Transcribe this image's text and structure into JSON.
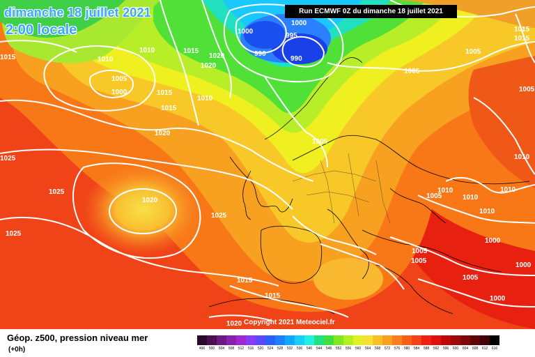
{
  "header": {
    "date_line": "dimanche 18 juillet 2021",
    "time_line": "2:00 locale",
    "run_info": "Run ECMWF 0Z du dimanche 18 juillet 2021"
  },
  "copyright": "Copyright 2021 Meteociel.fr",
  "footer": {
    "title": "Géop. z500, pression niveau mer",
    "subtitle": "(+0h)"
  },
  "legend": {
    "ticks": [
      "496",
      "500",
      "504",
      "508",
      "512",
      "516",
      "520",
      "524",
      "528",
      "532",
      "536",
      "540",
      "544",
      "548",
      "552",
      "556",
      "560",
      "564",
      "568",
      "572",
      "576",
      "580",
      "584",
      "588",
      "592",
      "596",
      "600",
      "604",
      "608",
      "612",
      "616"
    ],
    "colors": [
      "#2a0a2a",
      "#4a1050",
      "#6a1a80",
      "#8a20b0",
      "#a028d0",
      "#8a3aff",
      "#5a4aff",
      "#2a60ff",
      "#1a80ff",
      "#10a8ff",
      "#18d0ff",
      "#20f0e0",
      "#20e080",
      "#40e040",
      "#80e820",
      "#b0f020",
      "#e0f020",
      "#f8e030",
      "#f8c020",
      "#f8a020",
      "#f88020",
      "#f86018",
      "#f84018",
      "#f02010",
      "#e01010",
      "#c00808",
      "#a00808",
      "#800808",
      "#600408",
      "#400408",
      "#000000"
    ]
  },
  "isobar_labels": [
    {
      "text": "1000"
    },
    {
      "text": "990"
    },
    {
      "text": "995"
    },
    {
      "text": "990"
    },
    {
      "text": "1000"
    },
    {
      "text": "1005"
    },
    {
      "text": "1010"
    },
    {
      "text": "1010"
    },
    {
      "text": "1015"
    },
    {
      "text": "1020"
    },
    {
      "text": "1020"
    },
    {
      "text": "1005"
    },
    {
      "text": "1000"
    },
    {
      "text": "1015"
    },
    {
      "text": "1015"
    },
    {
      "text": "1010"
    },
    {
      "text": "1015"
    },
    {
      "text": "1020"
    },
    {
      "text": "1025"
    },
    {
      "text": "1025"
    },
    {
      "text": "1020"
    },
    {
      "text": "1025"
    },
    {
      "text": "1025"
    },
    {
      "text": "1005"
    },
    {
      "text": "1005"
    },
    {
      "text": "1010"
    },
    {
      "text": "1005"
    },
    {
      "text": "1010"
    },
    {
      "text": "1010"
    },
    {
      "text": "1010"
    },
    {
      "text": "1005"
    },
    {
      "text": "1005"
    },
    {
      "text": "1000"
    },
    {
      "text": "1000"
    },
    {
      "text": "1005"
    },
    {
      "text": "1000"
    },
    {
      "text": "1015"
    },
    {
      "text": "1015"
    },
    {
      "text": "1020"
    },
    {
      "text": "1015"
    },
    {
      "text": "1015"
    },
    {
      "text": "1005"
    },
    {
      "text": "1010"
    },
    {
      "text": "1005"
    },
    {
      "text": "1000"
    }
  ]
}
